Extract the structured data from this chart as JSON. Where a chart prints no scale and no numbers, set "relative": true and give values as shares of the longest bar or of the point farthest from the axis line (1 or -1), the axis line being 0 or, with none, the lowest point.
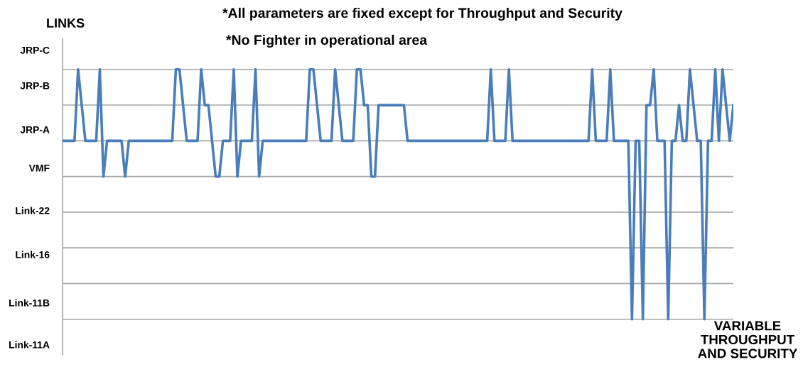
{
  "chart_data": {
    "type": "line",
    "relative": true,
    "ylabel": "LINKS",
    "annotations": [
      "*All parameters are fixed except for Throughput and Security",
      "*No Fighter in operational area",
      "VARIABLE\nTHROUGHPUT\nAND SECURITY",
      "JRP-C",
      "JRP-B",
      "JRP-A",
      "VMF",
      "Link-22",
      "Link-16",
      "Link-11B",
      "Link-11A"
    ],
    "categories": [
      null,
      null,
      null,
      null,
      null,
      null,
      null,
      null,
      null,
      null,
      null,
      null,
      null,
      null,
      null,
      null,
      null,
      null,
      null,
      null,
      null,
      null,
      null,
      null,
      null,
      null,
      null,
      null,
      null,
      null,
      null,
      null,
      null,
      null,
      null,
      null,
      null,
      null,
      null,
      null,
      null,
      null,
      null,
      null,
      null,
      null,
      null,
      null,
      null,
      null,
      null,
      null,
      null,
      null,
      null,
      null,
      null,
      null,
      null,
      null,
      null,
      null,
      null,
      null,
      null,
      null,
      null,
      null,
      null,
      null,
      null,
      null,
      null,
      null,
      null,
      null,
      null,
      null,
      null,
      null,
      null,
      null,
      null,
      null,
      null,
      null,
      null,
      null,
      null,
      null,
      null,
      null,
      null,
      null,
      null,
      null,
      null,
      null,
      null,
      null,
      null,
      null,
      null,
      null,
      null,
      null,
      null,
      null,
      null,
      null,
      null,
      null,
      null,
      null,
      null,
      null,
      null,
      null,
      null,
      null,
      null,
      null,
      null,
      null,
      null,
      null,
      null,
      null,
      null,
      null,
      null,
      null,
      null,
      null,
      null,
      null,
      null,
      null,
      null,
      null,
      null,
      null,
      null,
      null,
      null,
      null,
      null,
      null,
      null,
      null,
      null,
      null,
      null,
      null,
      null,
      null,
      null,
      null,
      null,
      null,
      null,
      null,
      null,
      null,
      null,
      null,
      null,
      null,
      null,
      null,
      null,
      null,
      null,
      null,
      null,
      null,
      null,
      null,
      null,
      null,
      null,
      null,
      null,
      null,
      null,
      null
    ],
    "series": [
      {
        "color": "#4a7ebb",
        "values": [
          0.714,
          0.714,
          0.714,
          0.714,
          1,
          0.857,
          0.714,
          0.714,
          0.714,
          0.714,
          1,
          0.571,
          0.714,
          0.714,
          0.714,
          0.714,
          0.714,
          0.571,
          0.714,
          0.714,
          0.714,
          0.714,
          0.714,
          0.714,
          0.714,
          0.714,
          0.714,
          0.714,
          0.714,
          0.714,
          0.714,
          1,
          1,
          0.857,
          0.714,
          0.714,
          0.714,
          0.714,
          1,
          0.857,
          0.857,
          0.714,
          0.571,
          0.571,
          0.714,
          0.714,
          0.714,
          1,
          0.571,
          0.714,
          0.714,
          0.714,
          0.714,
          1,
          0.571,
          0.714,
          0.714,
          0.714,
          0.714,
          0.714,
          0.714,
          0.714,
          0.714,
          0.714,
          0.714,
          0.714,
          0.714,
          0.714,
          1,
          1,
          0.857,
          0.714,
          0.714,
          0.714,
          0.714,
          1,
          0.857,
          0.714,
          0.714,
          0.714,
          0.714,
          1,
          1,
          0.857,
          0.857,
          0.571,
          0.571,
          0.857,
          0.857,
          0.857,
          0.857,
          0.857,
          0.857,
          0.857,
          0.857,
          0.714,
          0.714,
          0.714,
          0.714,
          0.714,
          0.714,
          0.714,
          0.714,
          0.714,
          0.714,
          0.714,
          0.714,
          0.714,
          0.714,
          0.714,
          0.714,
          0.714,
          0.714,
          0.714,
          0.714,
          0.714,
          0.714,
          0.714,
          1,
          0.714,
          0.714,
          0.714,
          0.714,
          1,
          0.714,
          0.714,
          0.714,
          0.714,
          0.714,
          0.714,
          0.714,
          0.714,
          0.714,
          0.714,
          0.714,
          0.714,
          0.714,
          0.714,
          0.714,
          0.714,
          0.714,
          0.714,
          0.714,
          0.714,
          0.714,
          0.714,
          1,
          0.714,
          0.714,
          0.714,
          0.714,
          1,
          0.714,
          0.714,
          0.714,
          0.714,
          0.714,
          0,
          0.714,
          0.714,
          0,
          0.857,
          0.857,
          1,
          0.714,
          0.714,
          0.714,
          0,
          0.714,
          0.714,
          0.857,
          0.714,
          0.714,
          1,
          0.857,
          0.714,
          0.714,
          0,
          0.714,
          0.714,
          1,
          0.714,
          1,
          0.857,
          0.714,
          0.857
        ]
      }
    ],
    "grid": "y",
    "legend": false,
    "marker": "none",
    "line_style": "solid"
  }
}
